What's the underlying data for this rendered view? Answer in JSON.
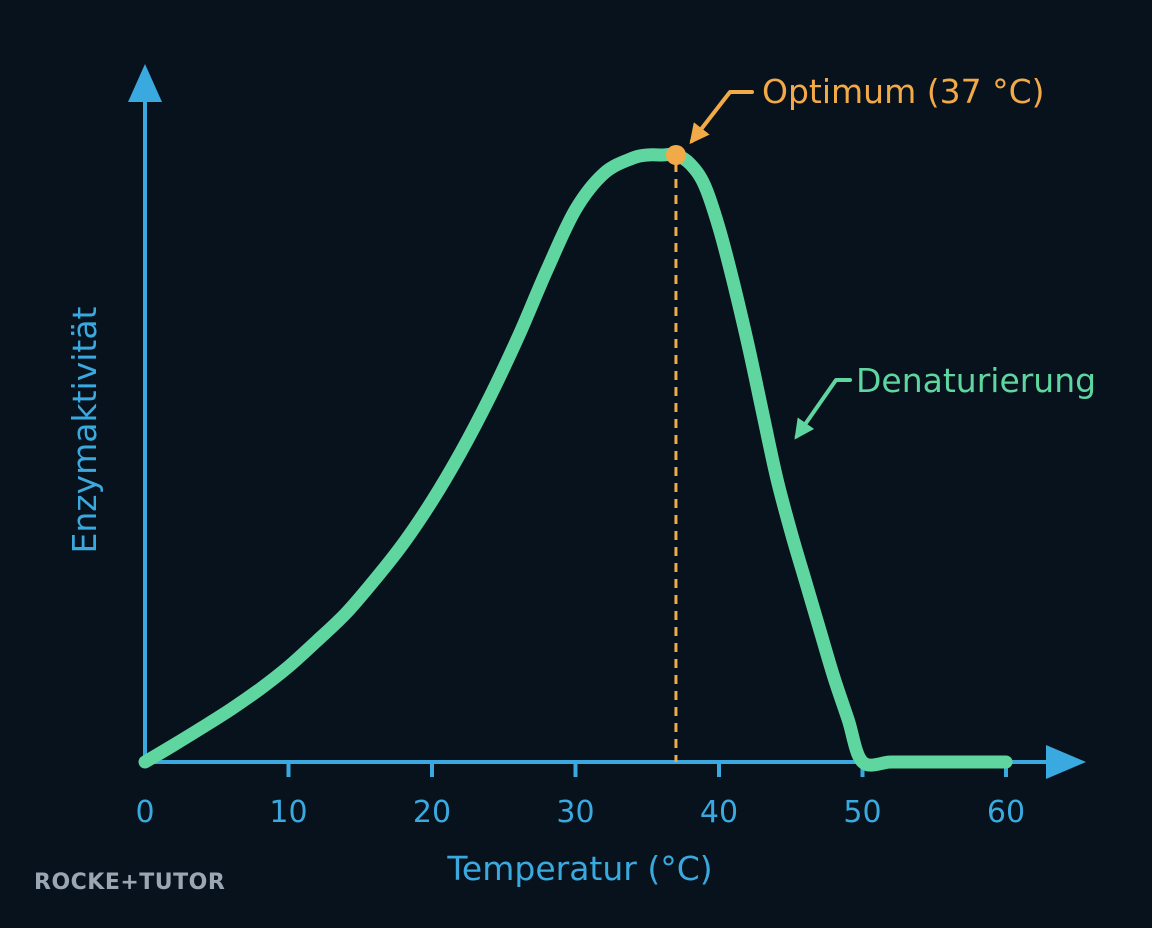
{
  "chart_data": {
    "type": "line",
    "title": "",
    "xlabel": "Temperatur (°C)",
    "ylabel": "Enzymaktivität",
    "xlim": [
      0,
      62
    ],
    "ylim": [
      0,
      1.05
    ],
    "x_ticks": [
      "0",
      "10",
      "20",
      "30",
      "40",
      "50",
      "60"
    ],
    "y_ticks": [],
    "grid": false,
    "legend": "none",
    "series": [
      {
        "color": "#5fd6a0",
        "x": [
          0,
          2,
          4,
          6,
          8,
          10,
          12,
          14,
          16,
          18,
          20,
          22,
          24,
          26,
          28,
          30,
          32,
          34,
          35,
          36,
          37,
          38,
          39,
          40,
          41,
          42,
          43,
          44,
          45,
          46,
          47,
          48,
          49,
          50,
          52,
          54,
          56,
          58,
          60
        ],
        "y": [
          0,
          0.028,
          0.057,
          0.087,
          0.12,
          0.157,
          0.2,
          0.245,
          0.3,
          0.36,
          0.43,
          0.51,
          0.6,
          0.7,
          0.81,
          0.91,
          0.97,
          0.995,
          1.0,
          1.0,
          1.0,
          0.985,
          0.95,
          0.88,
          0.79,
          0.69,
          0.58,
          0.47,
          0.38,
          0.3,
          0.22,
          0.14,
          0.07,
          0,
          0,
          0,
          0,
          0,
          0
        ]
      }
    ],
    "optimum_marker": {
      "x": 37,
      "y": 1.0,
      "color": "#f2aa48"
    },
    "denaturation_arrow_target": {
      "x": 45,
      "y": 0.53
    },
    "annotations": {
      "optimum": "Optimum (37 °C)",
      "denaturation": "Denaturierung"
    },
    "colors": {
      "axis": "#3aa9df",
      "curve": "#5fd6a0",
      "optimum": "#f2aa48",
      "background": "#07121c"
    }
  },
  "branding": {
    "logo_text": "ROCKE+TUTOR"
  }
}
